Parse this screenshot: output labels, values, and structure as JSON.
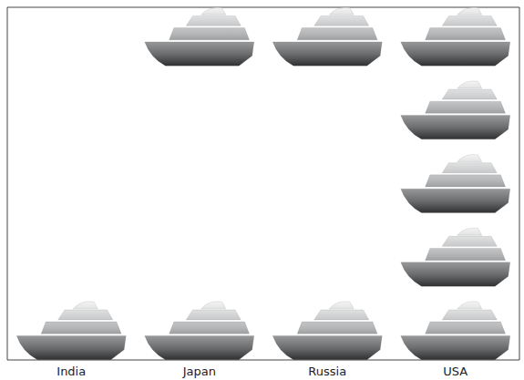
{
  "chart_data": {
    "type": "pictograph",
    "categories": [
      "India",
      "Japan",
      "Russia",
      "USA"
    ],
    "values": [
      1,
      2,
      2,
      5
    ],
    "color": "#b4b6b8",
    "tick_labels": "x"
  }
}
